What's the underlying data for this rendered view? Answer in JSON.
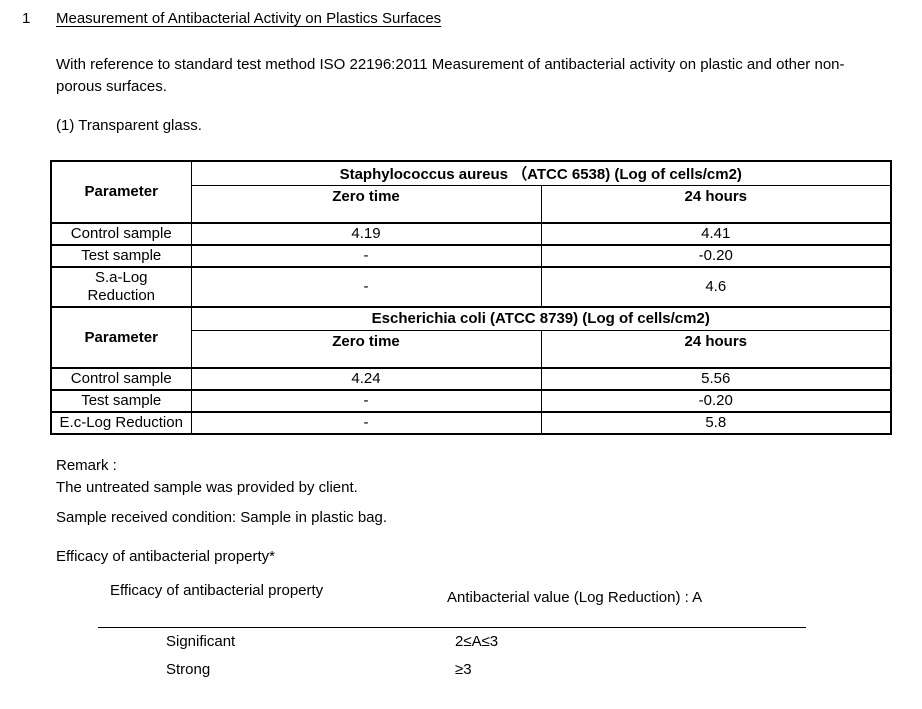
{
  "page": {
    "section_number": "1",
    "title": "Measurement of Antibacterial Activity on Plastics Surfaces",
    "intro": "With reference to standard test method ISO 22196:2011 Measurement of antibacterial activity on plastic and other non-porous surfaces.",
    "item_label": "(1) Transparent glass."
  },
  "results_table": {
    "parameter_label": "Parameter",
    "sections": [
      {
        "title": "Staphylococcus aureus （ATCC 6538) (Log of cells/cm2)",
        "columns": [
          "Zero time",
          "24 hours"
        ],
        "rows": [
          {
            "label": "Control sample",
            "zero_time": "4.19",
            "hours24": "4.41"
          },
          {
            "label": "Test sample",
            "zero_time": "-",
            "hours24": "-0.20"
          },
          {
            "label": "S.a-Log\nReduction",
            "zero_time": "-",
            "hours24": "4.6"
          }
        ]
      },
      {
        "title": "Escherichia coli  (ATCC 8739) (Log of cells/cm2)",
        "columns": [
          "Zero time",
          "24 hours"
        ],
        "rows": [
          {
            "label": "Control sample",
            "zero_time": "4.24",
            "hours24": "5.56"
          },
          {
            "label": "Test sample",
            "zero_time": "-",
            "hours24": "-0.20"
          },
          {
            "label": "E.c-Log Reduction",
            "zero_time": "-",
            "hours24": "5.8"
          }
        ]
      }
    ]
  },
  "remark": {
    "label": "Remark :",
    "text": "The untreated sample was provided by client."
  },
  "sample_condition": "Sample received condition: Sample in plastic bag.",
  "efficacy": {
    "heading": "Efficacy of antibacterial property*",
    "table": {
      "col1_header": "Efficacy of antibacterial property",
      "col2_header": "Antibacterial value (Log Reduction) : A",
      "rows": [
        {
          "level": "Significant",
          "value": "2≤A≤3"
        },
        {
          "level": "Strong",
          "value": "≥3"
        }
      ]
    }
  }
}
